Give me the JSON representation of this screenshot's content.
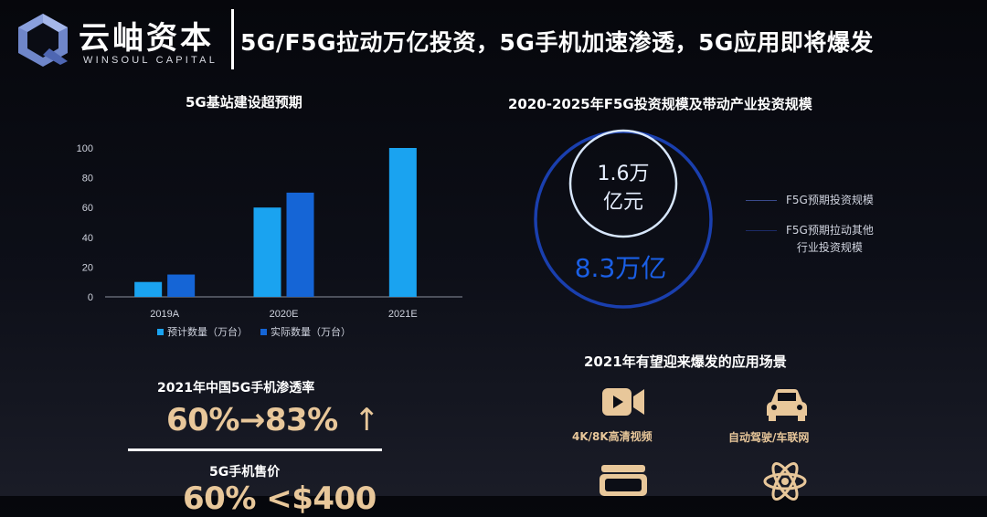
{
  "header": {
    "brand_cn": "云岫资本",
    "brand_en": "WINSOUL CAPITAL",
    "title": "5G/F5G拉动万亿投资，5G手机加速渗透，5G应用即将爆发"
  },
  "left_panel": {
    "chart_title": "5G基站建设超预期",
    "chart_data": {
      "type": "bar",
      "categories": [
        "2019A",
        "2020E",
        "2021E"
      ],
      "series": [
        {
          "name": "预计数量（万台）",
          "values": [
            10,
            60,
            100
          ],
          "color": "#1aa3f0"
        },
        {
          "name": "实际数量（万台）",
          "values": [
            15,
            70,
            null
          ],
          "color": "#1565d6"
        }
      ],
      "yticks": [
        0,
        20,
        40,
        60,
        80,
        100
      ],
      "ylim": [
        0,
        100
      ]
    },
    "stat1": {
      "label": "2021年中国5G手机渗透率",
      "value": "60%→83%",
      "arrow": "↑"
    },
    "stat2": {
      "label": "5G手机售价",
      "value": "60% <$400"
    }
  },
  "right_panel": {
    "ring_title": "2020-2025年F5G投资规模及带动产业投资规模",
    "inner_value": [
      "1.6万",
      "亿元"
    ],
    "outer_value": "8.3万亿",
    "legend": [
      {
        "label": "F5G预期投资规模"
      },
      {
        "label": [
          "F5G预期拉动其他",
          "行业投资规模"
        ]
      }
    ],
    "apps_title": "2021年有望迎来爆发的应用场景",
    "apps": [
      {
        "icon": "video-camera-icon",
        "label": "4K/8K高清视频"
      },
      {
        "icon": "car-icon",
        "label": "自动驾驶/车联网"
      },
      {
        "icon": "vr-headset-icon",
        "label": ""
      },
      {
        "icon": "atom-icon",
        "label": ""
      }
    ]
  }
}
